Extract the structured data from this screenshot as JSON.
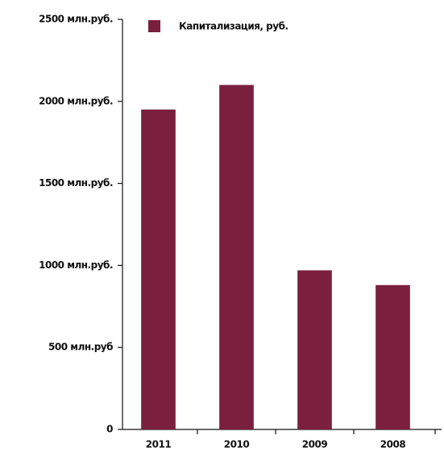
{
  "chart_data": {
    "type": "bar",
    "categories": [
      "2011",
      "2010",
      "2009",
      "2008"
    ],
    "series": [
      {
        "name": "Капитализация, руб.",
        "color": "#7b1f3f",
        "values": [
          1950,
          2100,
          970,
          880
        ]
      }
    ],
    "ylim": [
      0,
      2500
    ],
    "yticks": [
      {
        "value": 0,
        "label": "0"
      },
      {
        "value": 500,
        "label": "500 млн.руб"
      },
      {
        "value": 1000,
        "label": "1000 млн.руб."
      },
      {
        "value": 1500,
        "label": "1500 млн.руб."
      },
      {
        "value": 2000,
        "label": "2000 млн.руб."
      },
      {
        "value": 2500,
        "label": "2500 млн.руб."
      }
    ],
    "legend": "top"
  }
}
